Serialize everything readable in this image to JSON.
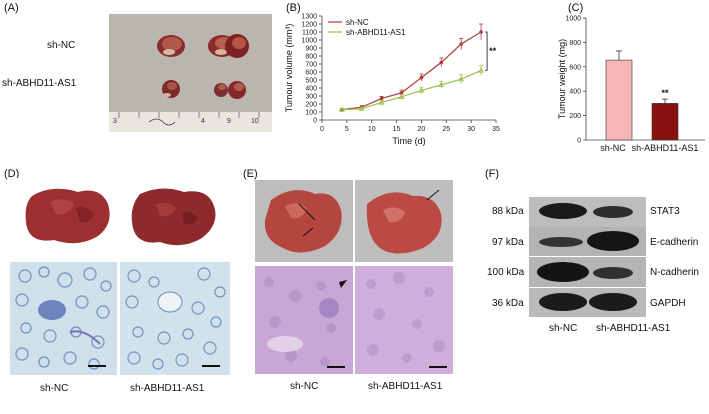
{
  "panels": {
    "A": {
      "label": "(A)",
      "rows": [
        "sh-NC",
        "sh-ABHD11-AS1"
      ],
      "ruler": [
        "3",
        "4",
        "9",
        "10"
      ]
    },
    "B": {
      "label": "(B)"
    },
    "C": {
      "label": "(C)"
    },
    "D": {
      "label": "(D)",
      "captions": [
        "sh-NC",
        "sh-ABHD11-AS1"
      ]
    },
    "E": {
      "label": "(E)",
      "captions": [
        "sh-NC",
        "sh-ABHD11-AS1"
      ]
    },
    "F": {
      "label": "(F)",
      "bands": [
        {
          "kda": "88 kDa",
          "protein": "STAT3"
        },
        {
          "kda": "97 kDa",
          "protein": "E-cadherin"
        },
        {
          "kda": "100 kDa",
          "protein": "N-cadherin"
        },
        {
          "kda": "36 kDa",
          "protein": "GAPDH"
        }
      ],
      "lanes": [
        "sh-NC",
        "sh-ABHD11-AS1"
      ]
    }
  },
  "chart_data": [
    {
      "type": "line",
      "title": "",
      "xlabel": "Time (d)",
      "ylabel": "Tumour volume (mm³)",
      "xlim": [
        0,
        35
      ],
      "ylim": [
        0,
        1300
      ],
      "xticks": [
        0,
        5,
        10,
        15,
        20,
        25,
        30,
        35
      ],
      "yticks": [
        0,
        100,
        200,
        300,
        400,
        500,
        600,
        700,
        800,
        900,
        1000,
        1100,
        1200,
        1300
      ],
      "grid": false,
      "legend": "top-left",
      "annotation": "**",
      "x": [
        4,
        8,
        12,
        16,
        20,
        24,
        28,
        32
      ],
      "series": [
        {
          "name": "sh-NC",
          "color": "#b03a3a",
          "values": [
            130,
            160,
            270,
            340,
            530,
            720,
            950,
            1100
          ],
          "errors": [
            15,
            20,
            25,
            35,
            45,
            55,
            70,
            100
          ]
        },
        {
          "name": "sh-ABHD11-AS1",
          "color": "#9bbf45",
          "values": [
            130,
            140,
            220,
            290,
            370,
            440,
            510,
            620
          ],
          "errors": [
            15,
            20,
            25,
            30,
            40,
            45,
            55,
            60
          ]
        }
      ]
    },
    {
      "type": "bar",
      "title": "",
      "xlabel": "",
      "ylabel": "Tumour weight (mg)",
      "ylim": [
        0,
        1000
      ],
      "yticks": [
        0,
        200,
        400,
        600,
        800,
        1000
      ],
      "grid": false,
      "categories": [
        "sh-NC",
        "sh-ABHD11-AS1"
      ],
      "values": [
        655,
        300
      ],
      "errors": [
        75,
        35
      ],
      "colors": [
        "#f7b6b6",
        "#8b1111"
      ],
      "annotations": [
        "",
        "**"
      ]
    }
  ]
}
